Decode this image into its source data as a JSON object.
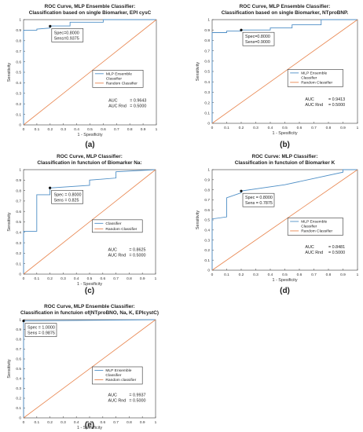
{
  "chart_data": [
    {
      "panel": "(a)",
      "type": "line",
      "title": "ROC Curve, MLP Ensemble Classifier:",
      "subtitle": "Classification based on single Biomarker, EPI cysC",
      "xlabel": "1 - Spesificity",
      "ylabel": "Sensitivity",
      "xlim": [
        0,
        1
      ],
      "ylim": [
        0,
        1
      ],
      "xticks": [
        "0",
        "0.1",
        "0.2",
        "0.3",
        "0.4",
        "0.5",
        "0.6",
        "0.7",
        "0.8",
        "0.9",
        "1"
      ],
      "yticks": [
        "0",
        "0.1",
        "0.2",
        "0.3",
        "0.4",
        "0.5",
        "0.6",
        "0.7",
        "0.8",
        "0.9",
        "1"
      ],
      "legend_position": "right",
      "series": [
        {
          "name": "MLP Ensemble Classifier",
          "color": "#4f8fc6",
          "x": [
            0,
            0,
            0.1,
            0.1,
            0.2,
            0.2,
            0.35,
            0.35,
            0.6,
            0.6,
            1.0
          ],
          "y": [
            0,
            0.9,
            0.9,
            0.91,
            0.92,
            0.94,
            0.94,
            0.975,
            0.975,
            1.0,
            1.0
          ]
        },
        {
          "name": "Random Classifier",
          "color": "#e8854e",
          "x": [
            0,
            1
          ],
          "y": [
            0,
            1
          ]
        }
      ],
      "marker": {
        "x": 0.2,
        "y": 0.9375,
        "label1": "Spec=0.8000",
        "label2": "Sens=0.9375"
      },
      "auc_label": "AUC",
      "auc_value": "= 0.9643",
      "auc_rnd_label": "AUC Rnd",
      "auc_rnd_value": "= 0.5000"
    },
    {
      "panel": "(b)",
      "type": "line",
      "title": "ROC Curve, MLP Ensemble Classifier:",
      "subtitle": "Classification based on single Biomarker, NTproBNP.",
      "xlabel": "1 - Spesificity",
      "ylabel": "Sensitivity",
      "xlim": [
        0,
        1
      ],
      "ylim": [
        0,
        1
      ],
      "xticks": [
        "0",
        "0.1",
        "0.2",
        "0.3",
        "0.4",
        "0.5",
        "0.6",
        "0.7",
        "0.8",
        "0.9",
        "1"
      ],
      "yticks": [
        "0",
        "0.1",
        "0.2",
        "0.3",
        "0.4",
        "0.5",
        "0.6",
        "0.7",
        "0.8",
        "0.9",
        "1"
      ],
      "legend_position": "right",
      "series": [
        {
          "name": "MLP Ensemble Classifier",
          "color": "#4f8fc6",
          "x": [
            0,
            0,
            0.1,
            0.1,
            0.2,
            0.2,
            0.4,
            0.4,
            0.55,
            0.55,
            0.75,
            0.75,
            1.0
          ],
          "y": [
            0,
            0.875,
            0.875,
            0.89,
            0.89,
            0.9,
            0.9,
            0.92,
            0.92,
            0.95,
            0.95,
            1.0,
            1.0
          ]
        },
        {
          "name": "Random Classifier",
          "color": "#e8854e",
          "x": [
            0,
            1
          ],
          "y": [
            0,
            1
          ]
        }
      ],
      "marker": {
        "x": 0.2,
        "y": 0.9,
        "label1": "Spec=0.8000",
        "label2": "Sens=0.9000"
      },
      "auc_label": "AUC",
      "auc_value": "= 0.9413",
      "auc_rnd_label": "AUC Rnd",
      "auc_rnd_value": "= 0.5000"
    },
    {
      "panel": "(c)",
      "type": "line",
      "title": "ROC Curve, MLP Classifier:",
      "subtitle": "Classification in functuion of Biomarker Na:",
      "xlabel": "1 - Spesificity",
      "ylabel": "Sensitivity",
      "xlim": [
        0,
        1
      ],
      "ylim": [
        0,
        1
      ],
      "xticks": [
        "0",
        "0.1",
        "0.2",
        "0.3",
        "0.4",
        "0.5",
        "0.6",
        "0.7",
        "0.8",
        "0.9",
        "1"
      ],
      "yticks": [
        "0",
        "0.1",
        "0.2",
        "0.3",
        "0.4",
        "0.5",
        "0.6",
        "0.7",
        "0.8",
        "0.9",
        "1"
      ],
      "legend_position": "right",
      "series": [
        {
          "name": "Classifier",
          "color": "#4f8fc6",
          "x": [
            0,
            0,
            0.1,
            0.1,
            0.2,
            0.2,
            0.5,
            0.5,
            0.7,
            0.7,
            1.0
          ],
          "y": [
            0,
            0.41,
            0.41,
            0.76,
            0.76,
            0.825,
            0.85,
            0.9,
            0.92,
            0.98,
            1.0
          ]
        },
        {
          "name": "Random Classifier",
          "color": "#e8854e",
          "x": [
            0,
            1
          ],
          "y": [
            0,
            1
          ]
        }
      ],
      "marker": {
        "x": 0.2,
        "y": 0.825,
        "label1": "Spec = 0.8000",
        "label2": "Sens = 0.825"
      },
      "auc_label": "AUC",
      "auc_value": "= 0.8625",
      "auc_rnd_label": "AUC Rnd",
      "auc_rnd_value": "= 0.5000"
    },
    {
      "panel": "(d)",
      "type": "line",
      "title": "ROC Curve: MLP Classifier:",
      "subtitle": "Classification in functuion of Biomarker K",
      "xlabel": "1 - Spesificity",
      "ylabel": "Sensitivity",
      "xlim": [
        0,
        1
      ],
      "ylim": [
        0,
        1
      ],
      "xticks": [
        "0",
        "0.1",
        "0.2",
        "0.3",
        "0.4",
        "0.5",
        "0.6",
        "0.7",
        "0.8",
        "0.9",
        "1"
      ],
      "yticks": [
        "0",
        "0.1",
        "0.2",
        "0.3",
        "0.4",
        "0.5",
        "0.6",
        "0.7",
        "0.8",
        "0.9",
        "1"
      ],
      "legend_position": "right",
      "series": [
        {
          "name": "MLP Ensemble Classifier",
          "color": "#4f8fc6",
          "x": [
            0,
            0,
            0.1,
            0.1,
            0.2,
            0.2,
            0.5,
            0.9,
            0.9,
            1.0
          ],
          "y": [
            0,
            0.51,
            0.53,
            0.72,
            0.77,
            0.7875,
            0.85,
            0.975,
            1.0,
            1.0
          ]
        },
        {
          "name": "Random Classifier",
          "color": "#e8854e",
          "x": [
            0,
            1
          ],
          "y": [
            0,
            1
          ]
        }
      ],
      "marker": {
        "x": 0.2,
        "y": 0.7875,
        "label1": "Spec = 0.8000",
        "label2": "Sens = 0.7875"
      },
      "auc_label": "AUC",
      "auc_value": "= 0.8481",
      "auc_rnd_label": "AUC Rnd",
      "auc_rnd_value": "= 0.5000"
    },
    {
      "panel": "(e)",
      "type": "line",
      "title": "ROC Curve, MLP Ensemble Classifier:",
      "subtitle": "Classification in functuion of(NTproBNO, Na, K, EPIcystC)",
      "xlabel": "1 - Spesificity",
      "ylabel": "Sensitivity",
      "xlim": [
        0,
        1
      ],
      "ylim": [
        0,
        1
      ],
      "xticks": [
        "0",
        "0.1",
        "0.2",
        "0.3",
        "0.4",
        "0.5",
        "0.6",
        "0.7",
        "0.8",
        "0.9",
        "1"
      ],
      "yticks": [
        "0",
        "0.1",
        "0.2",
        "0.3",
        "0.4",
        "0.5",
        "0.6",
        "0.7",
        "0.8",
        "0.9",
        "1"
      ],
      "legend_position": "right",
      "series": [
        {
          "name": "MLP Ensemble Classifier",
          "color": "#4f8fc6",
          "x": [
            0,
            0,
            1.0
          ],
          "y": [
            0,
            0.9875,
            1.0
          ]
        },
        {
          "name": "Random classifier",
          "color": "#e8854e",
          "x": [
            0,
            1
          ],
          "y": [
            0,
            1
          ]
        }
      ],
      "marker": {
        "x": 0.0,
        "y": 0.9875,
        "label1": "Spec = 1.0000",
        "label2": "Sens = 0.9875"
      },
      "auc_label": "AUC",
      "auc_value": "= 0.9937",
      "auc_rnd_label": "AUC Rnd",
      "auc_rnd_value": "= 0.5000"
    }
  ]
}
